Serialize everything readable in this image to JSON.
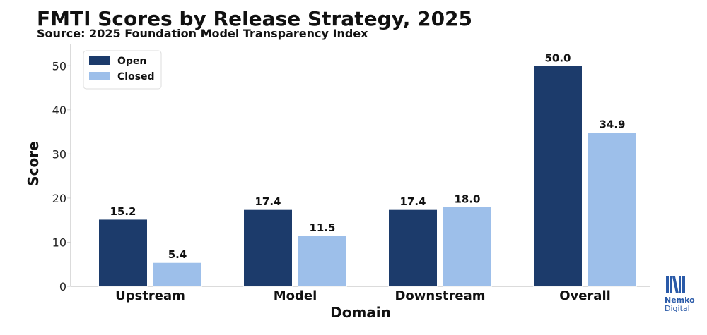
{
  "header": {
    "title": "FMTI Scores by Release Strategy, 2025",
    "subtitle": "Source: 2025 Foundation Model Transparency Index"
  },
  "logo": {
    "name": "Nemko",
    "tagline": "Digital",
    "icon": "nemko-n-icon",
    "color": "#2a5aa8"
  },
  "chart_data": {
    "type": "bar",
    "title": "FMTI Scores by Release Strategy, 2025",
    "subtitle": "Source: 2025 Foundation Model Transparency Index",
    "xlabel": "Domain",
    "ylabel": "Score",
    "categories": [
      "Upstream",
      "Model",
      "Downstream",
      "Overall"
    ],
    "series": [
      {
        "name": "Open",
        "values": [
          15.2,
          17.4,
          17.4,
          50.0
        ],
        "color": "#1c3b6b"
      },
      {
        "name": "Closed",
        "values": [
          5.4,
          11.5,
          18.0,
          34.9
        ],
        "color": "#9dbfea"
      }
    ],
    "ylim": [
      0,
      55
    ],
    "yticks": [
      0,
      10,
      20,
      30,
      40,
      50
    ],
    "data_labels": true,
    "grid": false,
    "legend": "top-left"
  }
}
